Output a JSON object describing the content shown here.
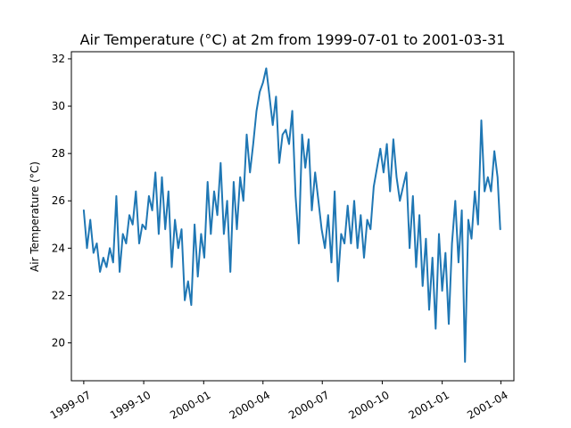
{
  "chart_data": {
    "type": "line",
    "title": "Air Temperature (°C) at 2m from 1999-07-01 to 2001-03-31",
    "xlabel": "",
    "ylabel": "Air Temperature (°C)",
    "xlim": [
      "1999-06-12",
      "2001-04-21"
    ],
    "ylim": [
      18.4,
      32.3
    ],
    "x_ticks": [
      "1999-07",
      "1999-10",
      "2000-01",
      "2000-04",
      "2000-07",
      "2000-10",
      "2001-01",
      "2001-04"
    ],
    "y_ticks": [
      20,
      22,
      24,
      26,
      28,
      30,
      32
    ],
    "grid": false,
    "legend": "none",
    "series_color": "#1f77b4",
    "series": [
      {
        "name": "",
        "x": [
          "1999-07-01",
          "1999-07-06",
          "1999-07-11",
          "1999-07-16",
          "1999-07-21",
          "1999-07-26",
          "1999-07-31",
          "1999-08-05",
          "1999-08-10",
          "1999-08-15",
          "1999-08-20",
          "1999-08-25",
          "1999-08-30",
          "1999-09-04",
          "1999-09-09",
          "1999-09-14",
          "1999-09-19",
          "1999-09-24",
          "1999-09-29",
          "1999-10-04",
          "1999-10-09",
          "1999-10-14",
          "1999-10-19",
          "1999-10-24",
          "1999-10-29",
          "1999-11-03",
          "1999-11-08",
          "1999-11-13",
          "1999-11-18",
          "1999-11-23",
          "1999-11-28",
          "1999-12-03",
          "1999-12-08",
          "1999-12-13",
          "1999-12-18",
          "1999-12-23",
          "1999-12-28",
          "2000-01-02",
          "2000-01-07",
          "2000-01-12",
          "2000-01-17",
          "2000-01-22",
          "2000-01-27",
          "2000-02-01",
          "2000-02-06",
          "2000-02-11",
          "2000-02-16",
          "2000-02-21",
          "2000-02-26",
          "2000-03-02",
          "2000-03-07",
          "2000-03-12",
          "2000-03-17",
          "2000-03-22",
          "2000-03-27",
          "2000-04-01",
          "2000-04-06",
          "2000-04-11",
          "2000-04-16",
          "2000-04-21",
          "2000-04-26",
          "2000-05-01",
          "2000-05-06",
          "2000-05-11",
          "2000-05-16",
          "2000-05-21",
          "2000-05-26",
          "2000-05-31",
          "2000-06-05",
          "2000-06-10",
          "2000-06-15",
          "2000-06-20",
          "2000-06-25",
          "2000-06-30",
          "2000-07-05",
          "2000-07-10",
          "2000-07-15",
          "2000-07-20",
          "2000-07-25",
          "2000-07-30",
          "2000-08-04",
          "2000-08-09",
          "2000-08-14",
          "2000-08-19",
          "2000-08-24",
          "2000-08-29",
          "2000-09-03",
          "2000-09-08",
          "2000-09-13",
          "2000-09-18",
          "2000-09-23",
          "2000-09-28",
          "2000-10-03",
          "2000-10-08",
          "2000-10-13",
          "2000-10-18",
          "2000-10-23",
          "2000-10-28",
          "2000-11-02",
          "2000-11-07",
          "2000-11-12",
          "2000-11-17",
          "2000-11-22",
          "2000-11-27",
          "2000-12-02",
          "2000-12-07",
          "2000-12-12",
          "2000-12-17",
          "2000-12-22",
          "2000-12-27",
          "2001-01-01",
          "2001-01-06",
          "2001-01-11",
          "2001-01-16",
          "2001-01-21",
          "2001-01-26",
          "2001-01-31",
          "2001-02-05",
          "2001-02-10",
          "2001-02-15",
          "2001-02-20",
          "2001-02-25",
          "2001-03-02",
          "2001-03-07",
          "2001-03-12",
          "2001-03-17",
          "2001-03-22",
          "2001-03-27",
          "2001-03-31"
        ],
        "values": [
          25.6,
          24.0,
          25.2,
          23.8,
          24.2,
          23.0,
          23.6,
          23.2,
          24.0,
          23.4,
          26.2,
          23.0,
          24.6,
          24.2,
          25.4,
          25.0,
          26.4,
          24.2,
          25.0,
          24.8,
          26.2,
          25.6,
          27.2,
          24.6,
          27.0,
          24.8,
          26.4,
          23.2,
          25.2,
          24.0,
          24.8,
          21.8,
          22.6,
          21.6,
          25.0,
          22.8,
          24.6,
          23.6,
          26.8,
          24.6,
          26.4,
          25.4,
          27.6,
          24.6,
          26.0,
          23.0,
          26.8,
          24.8,
          27.0,
          26.0,
          28.8,
          27.2,
          28.4,
          29.8,
          30.6,
          31.0,
          31.6,
          30.4,
          29.2,
          30.4,
          27.6,
          28.8,
          29.0,
          28.4,
          29.8,
          26.2,
          24.2,
          28.8,
          27.4,
          28.6,
          25.6,
          27.2,
          26.0,
          24.8,
          24.0,
          25.4,
          23.4,
          26.4,
          22.6,
          24.6,
          24.2,
          25.8,
          24.2,
          26.0,
          24.0,
          25.4,
          23.6,
          25.2,
          24.8,
          26.6,
          27.4,
          28.2,
          27.2,
          28.4,
          26.4,
          28.6,
          27.0,
          26.0,
          26.6,
          27.2,
          24.0,
          26.2,
          23.2,
          25.4,
          22.4,
          24.4,
          21.4,
          23.6,
          20.6,
          24.6,
          22.2,
          23.8,
          20.8,
          24.2,
          26.0,
          23.4,
          25.6,
          19.2,
          25.2,
          24.4,
          26.4,
          25.0,
          29.4,
          26.4,
          27.0,
          26.4,
          28.1,
          27.0,
          24.8
        ]
      }
    ]
  }
}
